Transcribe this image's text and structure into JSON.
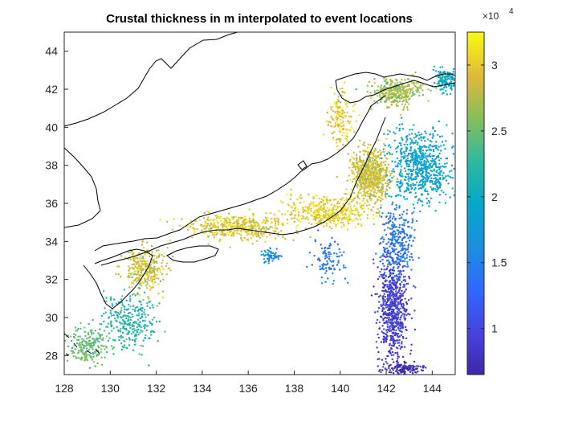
{
  "chart_data": {
    "type": "scatter",
    "title": "Crustal thickness in m interpolated to event locations",
    "xlim": [
      128,
      145
    ],
    "ylim": [
      27,
      45
    ],
    "x_ticks": [
      "128",
      "130",
      "132",
      "134",
      "136",
      "138",
      "140",
      "142",
      "144"
    ],
    "y_ticks": [
      "28",
      "30",
      "32",
      "34",
      "36",
      "38",
      "40",
      "42",
      "44"
    ],
    "grid": false,
    "colormap": "parula",
    "colorbar": {
      "range": [
        6500,
        32500
      ],
      "ticks": [
        "1",
        "1.5",
        "2",
        "2.5",
        "3"
      ],
      "exponent_prefix": "×10",
      "exponent": "4"
    },
    "clusters": [
      {
        "x": 142.3,
        "y": 30.5,
        "sx": 0.55,
        "sy": 2.4,
        "n": 700,
        "c": 9000
      },
      {
        "x": 143.5,
        "y": 38.0,
        "sx": 1.2,
        "sy": 1.6,
        "n": 700,
        "c": 19000
      },
      {
        "x": 141.3,
        "y": 37.5,
        "sx": 0.7,
        "sy": 1.2,
        "n": 700,
        "c": 28500
      },
      {
        "x": 142.5,
        "y": 41.8,
        "sx": 0.9,
        "sy": 0.6,
        "n": 350,
        "c": 27000
      },
      {
        "x": 144.6,
        "y": 42.5,
        "sx": 0.5,
        "sy": 0.5,
        "n": 150,
        "c": 20000
      },
      {
        "x": 139.5,
        "y": 35.5,
        "sx": 1.4,
        "sy": 0.7,
        "n": 400,
        "c": 30000
      },
      {
        "x": 135.5,
        "y": 34.8,
        "sx": 1.8,
        "sy": 0.6,
        "n": 450,
        "c": 29500
      },
      {
        "x": 131.5,
        "y": 32.5,
        "sx": 0.8,
        "sy": 1.0,
        "n": 300,
        "c": 28500
      },
      {
        "x": 130.8,
        "y": 29.8,
        "sx": 1.0,
        "sy": 1.2,
        "n": 300,
        "c": 22000
      },
      {
        "x": 129.0,
        "y": 28.5,
        "sx": 0.7,
        "sy": 0.8,
        "n": 200,
        "c": 25000
      },
      {
        "x": 140.0,
        "y": 40.5,
        "sx": 0.5,
        "sy": 1.2,
        "n": 150,
        "c": 30000
      },
      {
        "x": 139.5,
        "y": 33.0,
        "sx": 0.6,
        "sy": 1.0,
        "n": 100,
        "c": 14000
      },
      {
        "x": 137.0,
        "y": 33.2,
        "sx": 0.3,
        "sy": 0.3,
        "n": 60,
        "c": 16000
      },
      {
        "x": 142.5,
        "y": 34.0,
        "sx": 0.6,
        "sy": 1.5,
        "n": 300,
        "c": 14000
      },
      {
        "x": 142.8,
        "y": 27.3,
        "sx": 0.6,
        "sy": 0.3,
        "n": 120,
        "c": 7000
      }
    ]
  }
}
